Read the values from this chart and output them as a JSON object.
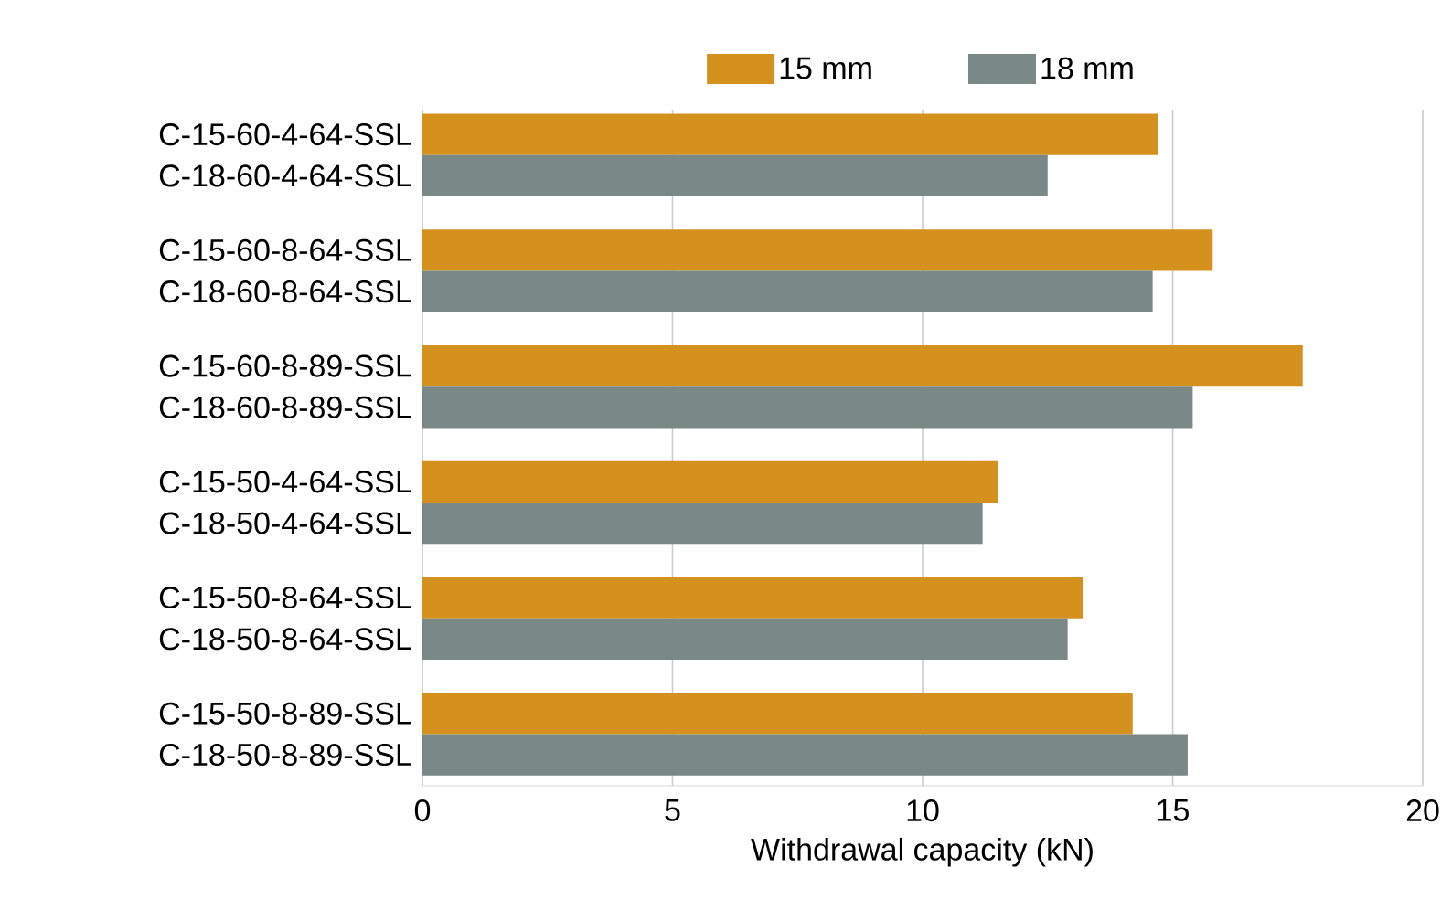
{
  "chart_data": {
    "type": "bar",
    "orientation": "horizontal",
    "xlabel": "Withdrawal capacity (kN)",
    "categories": [
      "C-15-60-4-64-SSL",
      "C-18-60-4-64-SSL",
      "C-15-60-8-64-SSL",
      "C-18-60-8-64-SSL",
      "C-15-60-8-89-SSL",
      "C-18-60-8-89-SSL",
      "C-15-50-4-64-SSL",
      "C-18-50-4-64-SSL",
      "C-15-50-8-64-SSL",
      "C-18-50-8-64-SSL",
      "C-15-50-8-89-SSL",
      "C-18-50-8-89-SSL"
    ],
    "series": [
      {
        "name": "15 mm",
        "color": "#d4911e",
        "values": [
          14.7,
          null,
          15.8,
          null,
          17.6,
          null,
          11.5,
          null,
          13.2,
          null,
          14.2,
          null
        ]
      },
      {
        "name": "18 mm",
        "color": "#7a8886",
        "values": [
          null,
          12.5,
          null,
          14.6,
          null,
          15.4,
          null,
          11.2,
          null,
          12.9,
          null,
          15.3
        ]
      }
    ],
    "xlim": [
      0,
      20
    ],
    "xticks": [
      0,
      5,
      10,
      15,
      20
    ],
    "grid": "x",
    "legend": "top"
  }
}
